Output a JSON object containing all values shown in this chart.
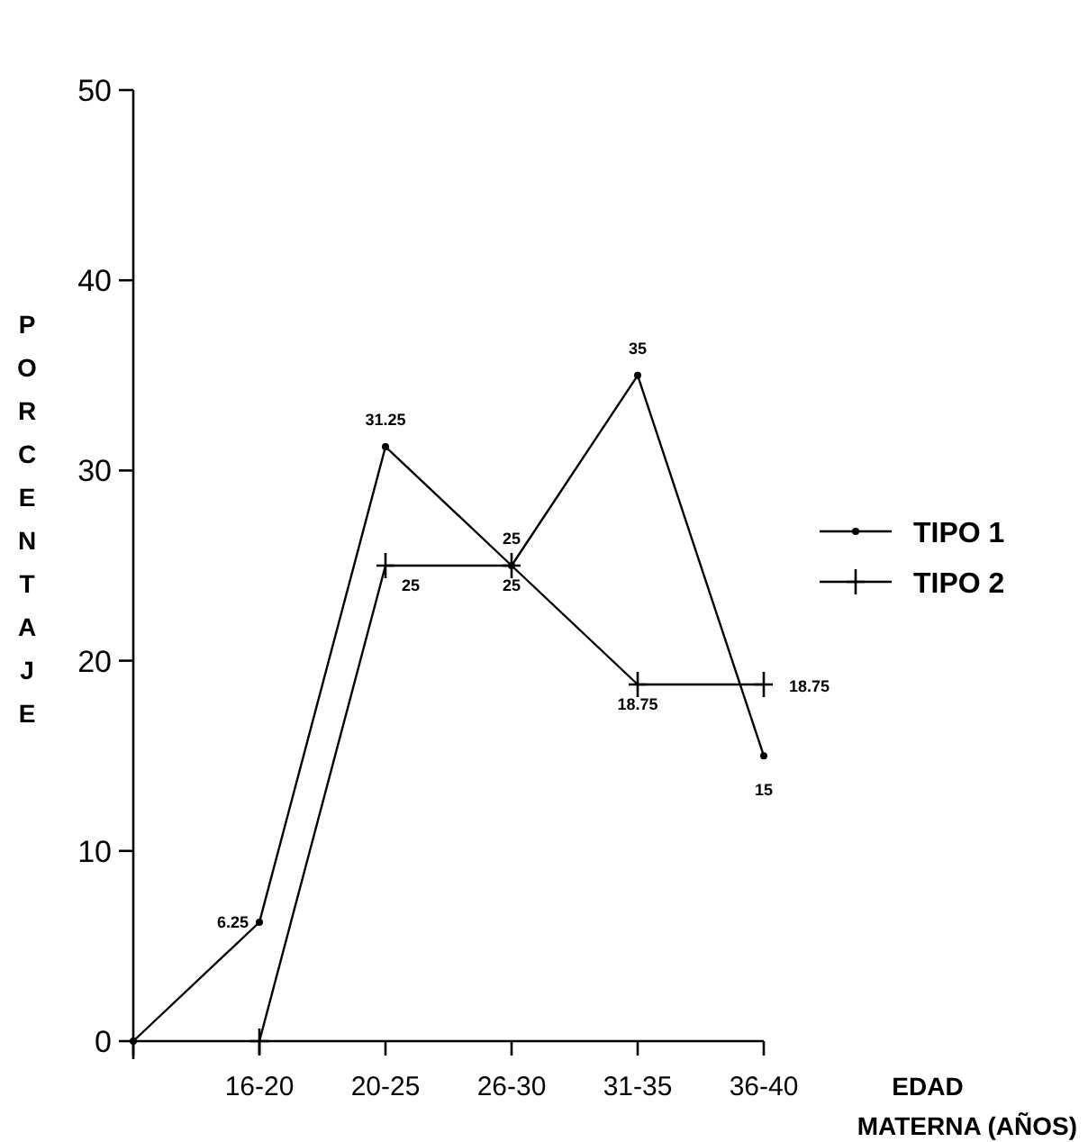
{
  "chart_data": {
    "type": "line",
    "xlabel": "EDAD MATERNA (AÑOS)",
    "ylabel": "PORCENTAJE",
    "categories": [
      null,
      "16-20",
      "20-25",
      "26-30",
      "31-35",
      "36-40"
    ],
    "series": [
      {
        "name": "TIPO 1",
        "color": "#000000",
        "marker": "circle",
        "values": [
          0,
          6.25,
          31.25,
          25,
          35,
          15
        ],
        "value_labels": [
          null,
          "6.25",
          "31.25",
          "25",
          "35",
          "15"
        ]
      },
      {
        "name": "TIPO 2",
        "color": "#000000",
        "marker": "cross",
        "values": [
          null,
          0,
          25,
          25,
          18.75,
          18.75
        ],
        "value_labels": [
          null,
          null,
          "25",
          "25",
          "18.75",
          "18.75"
        ]
      }
    ],
    "ylim": [
      0,
      50
    ],
    "yticks": [
      0,
      10,
      20,
      30,
      40,
      50
    ],
    "legend": "right",
    "grid": false
  }
}
